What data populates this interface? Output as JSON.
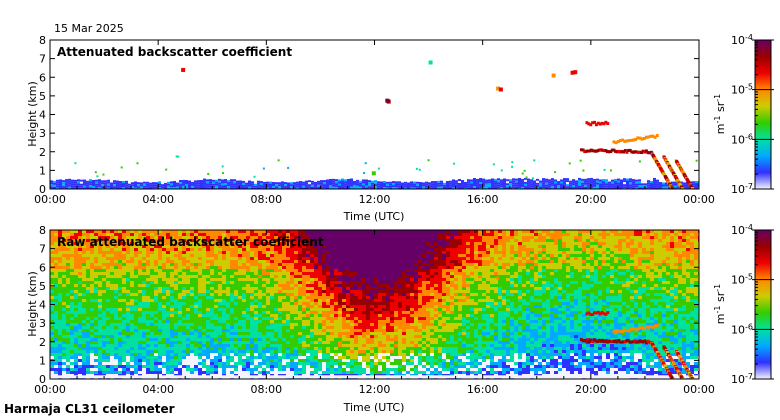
{
  "date": "15 Mar 2025",
  "footer": "Harmaja CL31 ceilometer",
  "colors": {
    "cb_stops": [
      "#f4f4ff",
      "#3030ff",
      "#00aaff",
      "#00e0a0",
      "#33cc00",
      "#cccc00",
      "#ff8800",
      "#ee0000",
      "#990000",
      "#660066"
    ]
  },
  "chart_data": [
    {
      "type": "heatmap",
      "title": "Attenuated backscatter coefficient",
      "xlabel": "Time (UTC)",
      "ylabel": "Height (km)",
      "xlim": [
        0,
        24
      ],
      "ylim": [
        0,
        8
      ],
      "xticks": [
        "00:00",
        "04:00",
        "08:00",
        "12:00",
        "16:00",
        "20:00",
        "00:00"
      ],
      "yticks": [
        "0",
        "1",
        "2",
        "3",
        "4",
        "5",
        "6",
        "7",
        "8"
      ],
      "colorbar": {
        "scale": "log",
        "range": [
          1e-07,
          0.0001
        ],
        "ticks": [
          {
            "mant": "10",
            "exp": "-7"
          },
          {
            "mant": "10",
            "exp": "-6"
          },
          {
            "mant": "10",
            "exp": "-5"
          },
          {
            "mant": "10",
            "exp": "-4"
          }
        ],
        "label": {
          "p1": "m",
          "e1": "-1",
          "p2": " sr",
          "e2": "-1"
        }
      }
    },
    {
      "type": "heatmap",
      "title": "Raw attenuated backscatter coefficient",
      "xlabel": "Time (UTC)",
      "ylabel": "Height (km)",
      "xlim": [
        0,
        24
      ],
      "ylim": [
        0,
        8
      ],
      "xticks": [
        "00:00",
        "04:00",
        "08:00",
        "12:00",
        "16:00",
        "20:00",
        "00:00"
      ],
      "yticks": [
        "0",
        "1",
        "2",
        "3",
        "4",
        "5",
        "6",
        "7",
        "8"
      ],
      "colorbar": {
        "scale": "log",
        "range": [
          1e-07,
          0.0001
        ],
        "ticks": [
          {
            "mant": "10",
            "exp": "-7"
          },
          {
            "mant": "10",
            "exp": "-6"
          },
          {
            "mant": "10",
            "exp": "-5"
          },
          {
            "mant": "10",
            "exp": "-4"
          }
        ],
        "label": {
          "p1": "m",
          "e1": "-1",
          "p2": " sr",
          "e2": "-1"
        }
      }
    }
  ]
}
